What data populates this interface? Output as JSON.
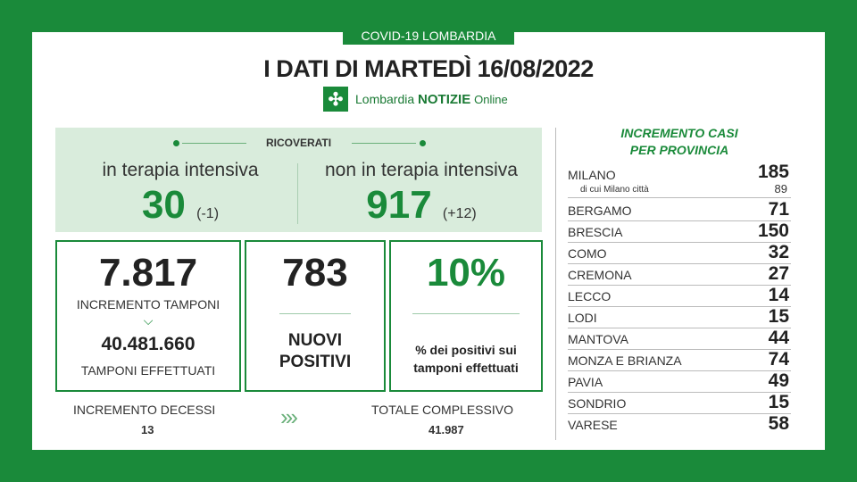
{
  "header": {
    "tag": "COVID-19 LOMBARDIA",
    "title": "I DATI DI MARTEDÌ 16/08/2022",
    "logo_text": "Lombardia",
    "logo_bold": "NOTIZIE",
    "logo_suffix": "Online"
  },
  "ricoverati": {
    "label": "RICOVERATI",
    "intensiva_label": "in terapia intensiva",
    "intensiva_value": "30",
    "intensiva_delta": "(-1)",
    "non_intensiva_label": "non in terapia intensiva",
    "non_intensiva_value": "917",
    "non_intensiva_delta": "(+12)"
  },
  "tamponi": {
    "incremento": "7.817",
    "incremento_label": "INCREMENTO TAMPONI",
    "effettuati": "40.481.660",
    "effettuati_label": "TAMPONI EFFETTUATI"
  },
  "positivi": {
    "value": "783",
    "label_line1": "NUOVI",
    "label_line2": "POSITIVI"
  },
  "percentuale": {
    "value": "10%",
    "label_line1": "% dei positivi sui",
    "label_line2": "tamponi effettuati"
  },
  "decessi": {
    "incremento_label": "INCREMENTO DECESSI",
    "incremento_value": "13",
    "totale_label": "TOTALE COMPLESSIVO",
    "totale_value": "41.987",
    "arrows": "›››"
  },
  "province": {
    "title_line1": "INCREMENTO CASI",
    "title_line2": "PER PROVINCIA",
    "milano_name": "MILANO",
    "milano_value": "185",
    "milano_citta_label": "di cui Milano città",
    "milano_citta_value": "89",
    "rows": [
      {
        "name": "BERGAMO",
        "value": "71"
      },
      {
        "name": "BRESCIA",
        "value": "150"
      },
      {
        "name": "COMO",
        "value": "32"
      },
      {
        "name": "CREMONA",
        "value": "27"
      },
      {
        "name": "LECCO",
        "value": "14"
      },
      {
        "name": "LODI",
        "value": "15"
      },
      {
        "name": "MANTOVA",
        "value": "44"
      },
      {
        "name": "MONZA E BRIANZA",
        "value": "74"
      },
      {
        "name": "PAVIA",
        "value": "49"
      },
      {
        "name": "SONDRIO",
        "value": "15"
      },
      {
        "name": "VARESE",
        "value": "58"
      }
    ]
  },
  "colors": {
    "brand_green": "#1a8a3a",
    "panel_green": "#d9ecdc"
  }
}
